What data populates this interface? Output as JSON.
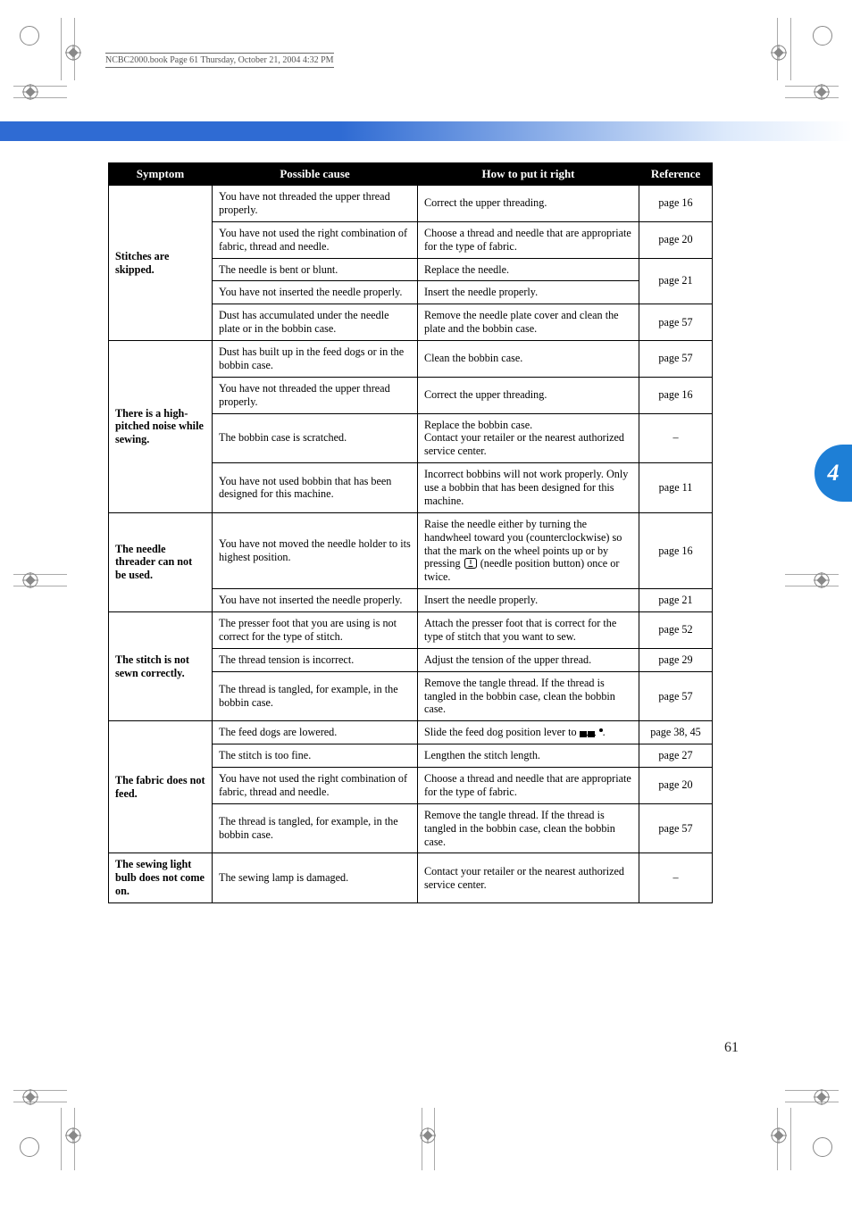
{
  "meta": {
    "book_info": "NCBC2000.book  Page 61  Thursday, October 21, 2004  4:32 PM",
    "page_number": "61",
    "section_tab": "4"
  },
  "colors": {
    "band_start": "#2f6bd3",
    "band_end": "#ffffff",
    "tab_bg": "#1e7fd6",
    "header_bg": "#000000",
    "header_fg": "#ffffff",
    "border": "#000000"
  },
  "table": {
    "headers": {
      "symptom": "Symptom",
      "cause": "Possible cause",
      "fix": "How to put it right",
      "ref": "Reference"
    },
    "groups": [
      {
        "symptom": "Stitches are skipped.",
        "rows": [
          {
            "cause": "You have not threaded the upper thread properly.",
            "fix": "Correct the upper threading.",
            "ref": "page 16"
          },
          {
            "cause": "You have not used the right combination of fabric, thread and needle.",
            "fix": "Choose a thread and needle that are appropriate for the type of fabric.",
            "ref": "page 20"
          },
          {
            "cause": "The needle is bent or blunt.",
            "fix": "Replace the needle.",
            "ref": "page 21",
            "mergeRefWithNext": true
          },
          {
            "cause": "You have not inserted the needle properly.",
            "fix": "Insert the needle properly.",
            "ref": "",
            "refHidden": true
          },
          {
            "cause": "Dust has accumulated under the needle plate or in the bobbin case.",
            "fix": "Remove the needle plate cover and clean the plate and the bobbin case.",
            "ref": "page 57"
          }
        ]
      },
      {
        "symptom": "There is a high-pitched noise while sewing.",
        "rows": [
          {
            "cause": "Dust has built up in the feed dogs or in the bobbin case.",
            "fix": "Clean the bobbin case.",
            "ref": "page 57"
          },
          {
            "cause": "You have not threaded the upper thread properly.",
            "fix": "Correct the upper threading.",
            "ref": "page 16"
          },
          {
            "cause": "The bobbin case is scratched.",
            "fix": "Replace the bobbin case.\nContact your retailer or the nearest authorized service center.",
            "ref": "–"
          },
          {
            "cause": "You have not used bobbin that has been designed for this machine.",
            "fix": "Incorrect bobbins will not work properly. Only use a bobbin that has been designed for this machine.",
            "ref": "page 11"
          }
        ]
      },
      {
        "symptom": "The needle threader can not be used.",
        "rows": [
          {
            "cause": "You have not moved the needle holder to its highest position.",
            "fix_pre": "Raise the needle either by turning the handwheel toward you (counterclockwise) so that the mark on the wheel points up or by pressing ",
            "fix_post": " (needle position button) once or twice.",
            "ref": "page 16",
            "needleBtn": true
          },
          {
            "cause": "You have not inserted the needle properly.",
            "fix": "Insert the needle properly.",
            "ref": "page 21"
          }
        ]
      },
      {
        "symptom": "The stitch is not sewn correctly.",
        "rows": [
          {
            "cause": "The presser foot that you are using is not correct for the type of stitch.",
            "fix": "Attach the presser foot that is correct for the type of stitch that you want to sew.",
            "ref": "page 52"
          },
          {
            "cause": "The thread tension is incorrect.",
            "fix": "Adjust the tension of the upper thread.",
            "ref": "page 29"
          },
          {
            "cause": "The thread is tangled, for example, in the bobbin case.",
            "fix": "Remove the tangle thread. If the thread is tangled in the bobbin case, clean the bobbin case.",
            "ref": "page 57"
          }
        ]
      },
      {
        "symptom": "The fabric does not feed.",
        "rows": [
          {
            "cause": "The feed dogs are lowered.",
            "fix_pre": "Slide the feed dog position lever to ",
            "fix_post": ".",
            "ref": "page 38, 45",
            "feedDog": true
          },
          {
            "cause": "The stitch is too fine.",
            "fix": "Lengthen the stitch length.",
            "ref": "page 27"
          },
          {
            "cause": "You have not used the right combination of fabric, thread and needle.",
            "fix": "Choose a thread and needle that are appropriate for the type of fabric.",
            "ref": "page 20"
          },
          {
            "cause": "The thread is tangled, for example, in the bobbin case.",
            "fix": "Remove the tangle thread. If the thread is tangled in the bobbin case, clean the bobbin case.",
            "ref": "page 57"
          }
        ]
      },
      {
        "symptom": "The sewing light bulb does not come on.",
        "rows": [
          {
            "cause": "The sewing lamp is damaged.",
            "fix": "Contact your retailer or the nearest authorized service center.",
            "ref": "–"
          }
        ]
      }
    ]
  }
}
